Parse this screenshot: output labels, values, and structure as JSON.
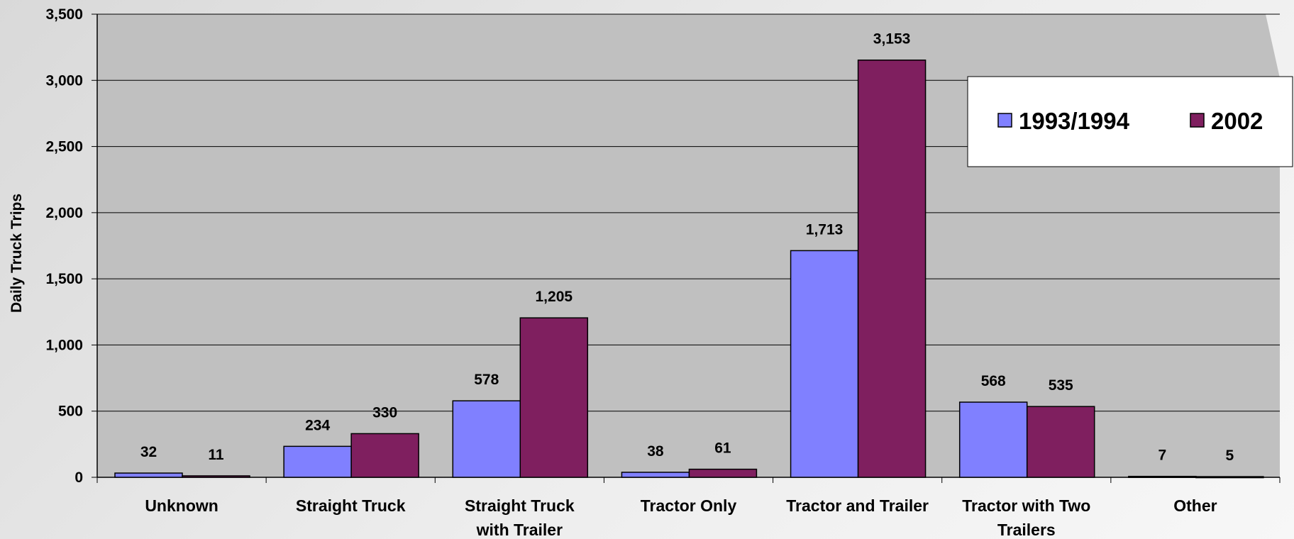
{
  "chart_data": {
    "type": "bar",
    "title": "",
    "xlabel": "",
    "ylabel": "Daily Truck Trips",
    "ylim": [
      0,
      3500
    ],
    "yticks": [
      0,
      500,
      1000,
      1500,
      2000,
      2500,
      3000,
      3500
    ],
    "ytick_labels": [
      "0",
      "500",
      "1,000",
      "1,500",
      "2,000",
      "2,500",
      "3,000",
      "3,500"
    ],
    "grid": true,
    "legend_position": "top-right",
    "categories": [
      [
        "Unknown"
      ],
      [
        "Straight Truck"
      ],
      [
        "Straight Truck",
        "with Trailer"
      ],
      [
        "Tractor Only"
      ],
      [
        "Tractor and Trailer"
      ],
      [
        "Tractor with Two",
        "Trailers"
      ],
      [
        "Other"
      ]
    ],
    "series": [
      {
        "name": "1993/1994",
        "color": "#8080FF",
        "values": [
          32,
          234,
          578,
          38,
          1713,
          568,
          7
        ],
        "labels": [
          "32",
          "234",
          "578",
          "38",
          "1,713",
          "568",
          "7"
        ]
      },
      {
        "name": "2002",
        "color": "#7F1F5F",
        "values": [
          11,
          330,
          1205,
          61,
          3153,
          535,
          5
        ],
        "labels": [
          "11",
          "330",
          "1,205",
          "61",
          "3,153",
          "535",
          "5"
        ]
      }
    ]
  },
  "colors": {
    "plot_background": "#C0C0C0",
    "gridline": "#000000",
    "bar_outline": "#000000"
  }
}
